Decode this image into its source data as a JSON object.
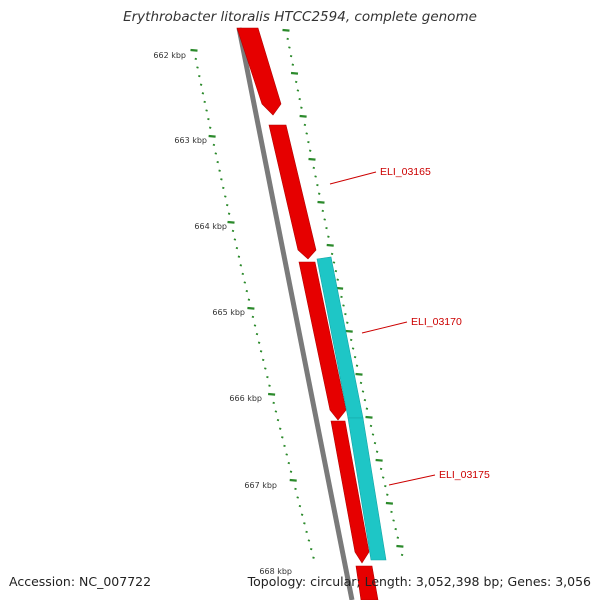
{
  "title": "Erythrobacter litoralis HTCC2594, complete genome",
  "footer": {
    "accession": "Accession: NC_007722",
    "summary": "Topology: circular; Length: 3,052,398 bp; Genes: 3,056"
  },
  "colors": {
    "backbone": "#7a7a7a",
    "forward_gene": "#e60000",
    "reverse_gene": "#1ec6c6",
    "tick": "#2b8a2b",
    "gene_label": "#cc0000",
    "tick_label": "#333333"
  },
  "ticks": {
    "labels": [
      "662 kbp",
      "663 kbp",
      "664 kbp",
      "665 kbp",
      "666 kbp",
      "667 kbp",
      "668 kbp"
    ]
  },
  "genes": [
    {
      "label": "ELI_03165",
      "strand": "forward"
    },
    {
      "label": "ELI_03170",
      "strand": "forward"
    },
    {
      "label": "ELI_03175",
      "strand": "forward"
    }
  ]
}
